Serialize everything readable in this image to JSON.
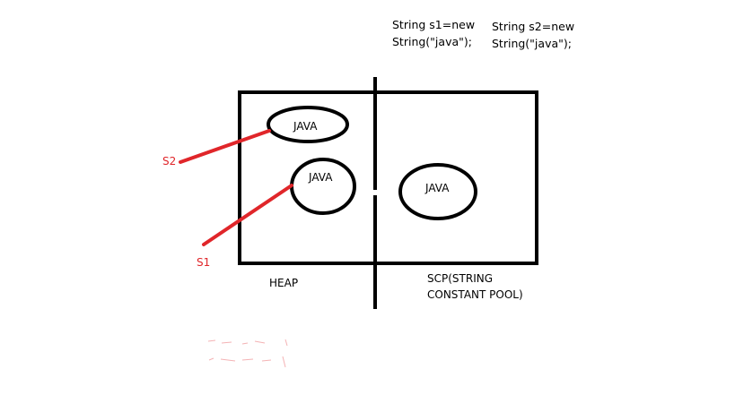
{
  "code": {
    "s1_line1": "String s1=new",
    "s1_line2": "String(\"java\");",
    "s2_line1": "String s2=new",
    "s2_line2": "String(\"java\");"
  },
  "heap": {
    "label": "HEAP",
    "objects": [
      "JAVA",
      "JAVA"
    ]
  },
  "scp": {
    "label_line1": "SCP(STRING",
    "label_line2": "CONSTANT POOL)",
    "object": "JAVA"
  },
  "references": [
    "S2",
    "S1"
  ],
  "colors": {
    "reference": "#e0262a",
    "stroke": "#000000",
    "background": "#ffffff"
  }
}
